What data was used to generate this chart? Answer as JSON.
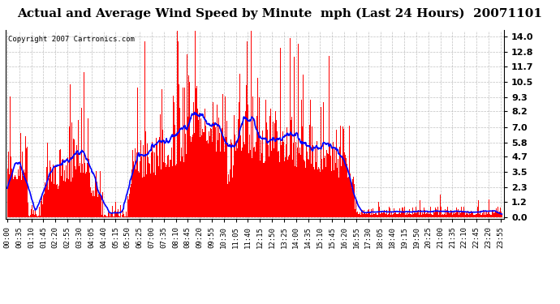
{
  "title": "Actual and Average Wind Speed by Minute  mph (Last 24 Hours)  20071101",
  "copyright_text": "Copyright 2007 Cartronics.com",
  "background_color": "#ffffff",
  "plot_bg_color": "#ffffff",
  "bar_color": "#ff0000",
  "line_color": "#0000ff",
  "grid_color": "#b0b0b0",
  "yticks": [
    0.0,
    1.2,
    2.3,
    3.5,
    4.7,
    5.8,
    7.0,
    8.2,
    9.3,
    10.5,
    11.7,
    12.8,
    14.0
  ],
  "ylim": [
    -0.15,
    14.5
  ],
  "n_minutes": 1440,
  "seed": 99,
  "title_fontsize": 11,
  "copyright_fontsize": 6.5,
  "tick_fontsize": 6.5,
  "ytick_fontsize": 8
}
